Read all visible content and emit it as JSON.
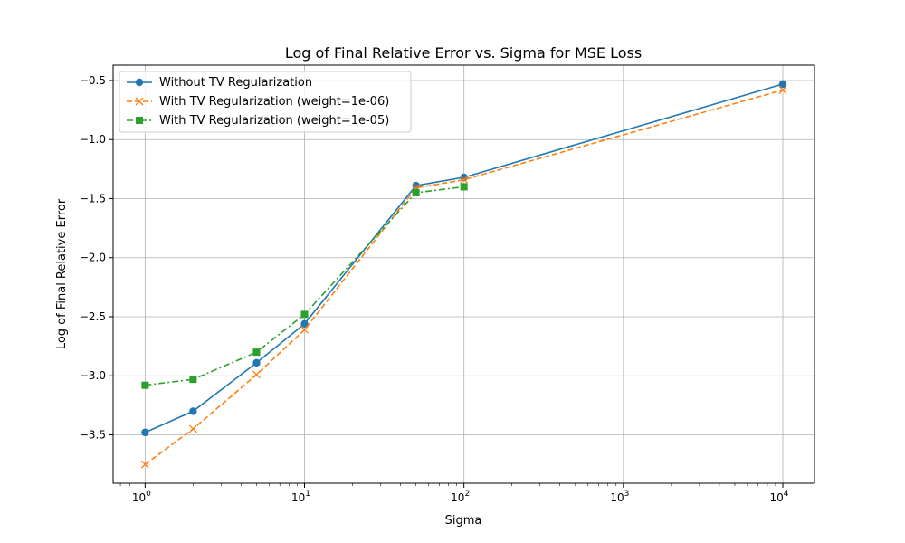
{
  "chart_data": {
    "type": "line",
    "title": "Log of Final Relative Error vs. Sigma for MSE Loss",
    "xlabel": "Sigma",
    "ylabel": "Log of Final Relative Error",
    "xscale": "log",
    "xlim": [
      0.63,
      15800
    ],
    "ylim": [
      -3.91,
      -0.37
    ],
    "grid": true,
    "legend_position": "top-left",
    "xticks": [
      1,
      10,
      100,
      1000,
      10000
    ],
    "xtick_labels": [
      {
        "base": "10",
        "exp": "0"
      },
      {
        "base": "10",
        "exp": "1"
      },
      {
        "base": "10",
        "exp": "2"
      },
      {
        "base": "10",
        "exp": "3"
      },
      {
        "base": "10",
        "exp": "4"
      }
    ],
    "yticks": [
      -3.5,
      -3.0,
      -2.5,
      -2.0,
      -1.5,
      -1.0,
      -0.5
    ],
    "ytick_labels": [
      "−3.5",
      "−3.0",
      "−2.5",
      "−2.0",
      "−1.5",
      "−1.0",
      "−0.5"
    ],
    "series": [
      {
        "name": "Without TV Regularization",
        "color": "#1f77b4",
        "marker": "circle",
        "dash": "solid",
        "x": [
          1,
          2,
          5,
          10,
          50,
          100,
          10000
        ],
        "y": [
          -3.48,
          -3.3,
          -2.89,
          -2.56,
          -1.39,
          -1.32,
          -0.53
        ]
      },
      {
        "name": "With TV Regularization (weight=1e-06)",
        "color": "#ff7f0e",
        "marker": "x",
        "dash": "dashed",
        "x": [
          1,
          2,
          5,
          10,
          50,
          100,
          10000
        ],
        "y": [
          -3.75,
          -3.45,
          -2.99,
          -2.61,
          -1.41,
          -1.34,
          -0.58
        ]
      },
      {
        "name": "With TV Regularization (weight=1e-05)",
        "color": "#2ca02c",
        "marker": "square",
        "dash": "dashdot",
        "x": [
          1,
          2,
          5,
          10,
          50,
          100
        ],
        "y": [
          -3.08,
          -3.03,
          -2.8,
          -2.48,
          -1.45,
          -1.4
        ]
      }
    ]
  }
}
